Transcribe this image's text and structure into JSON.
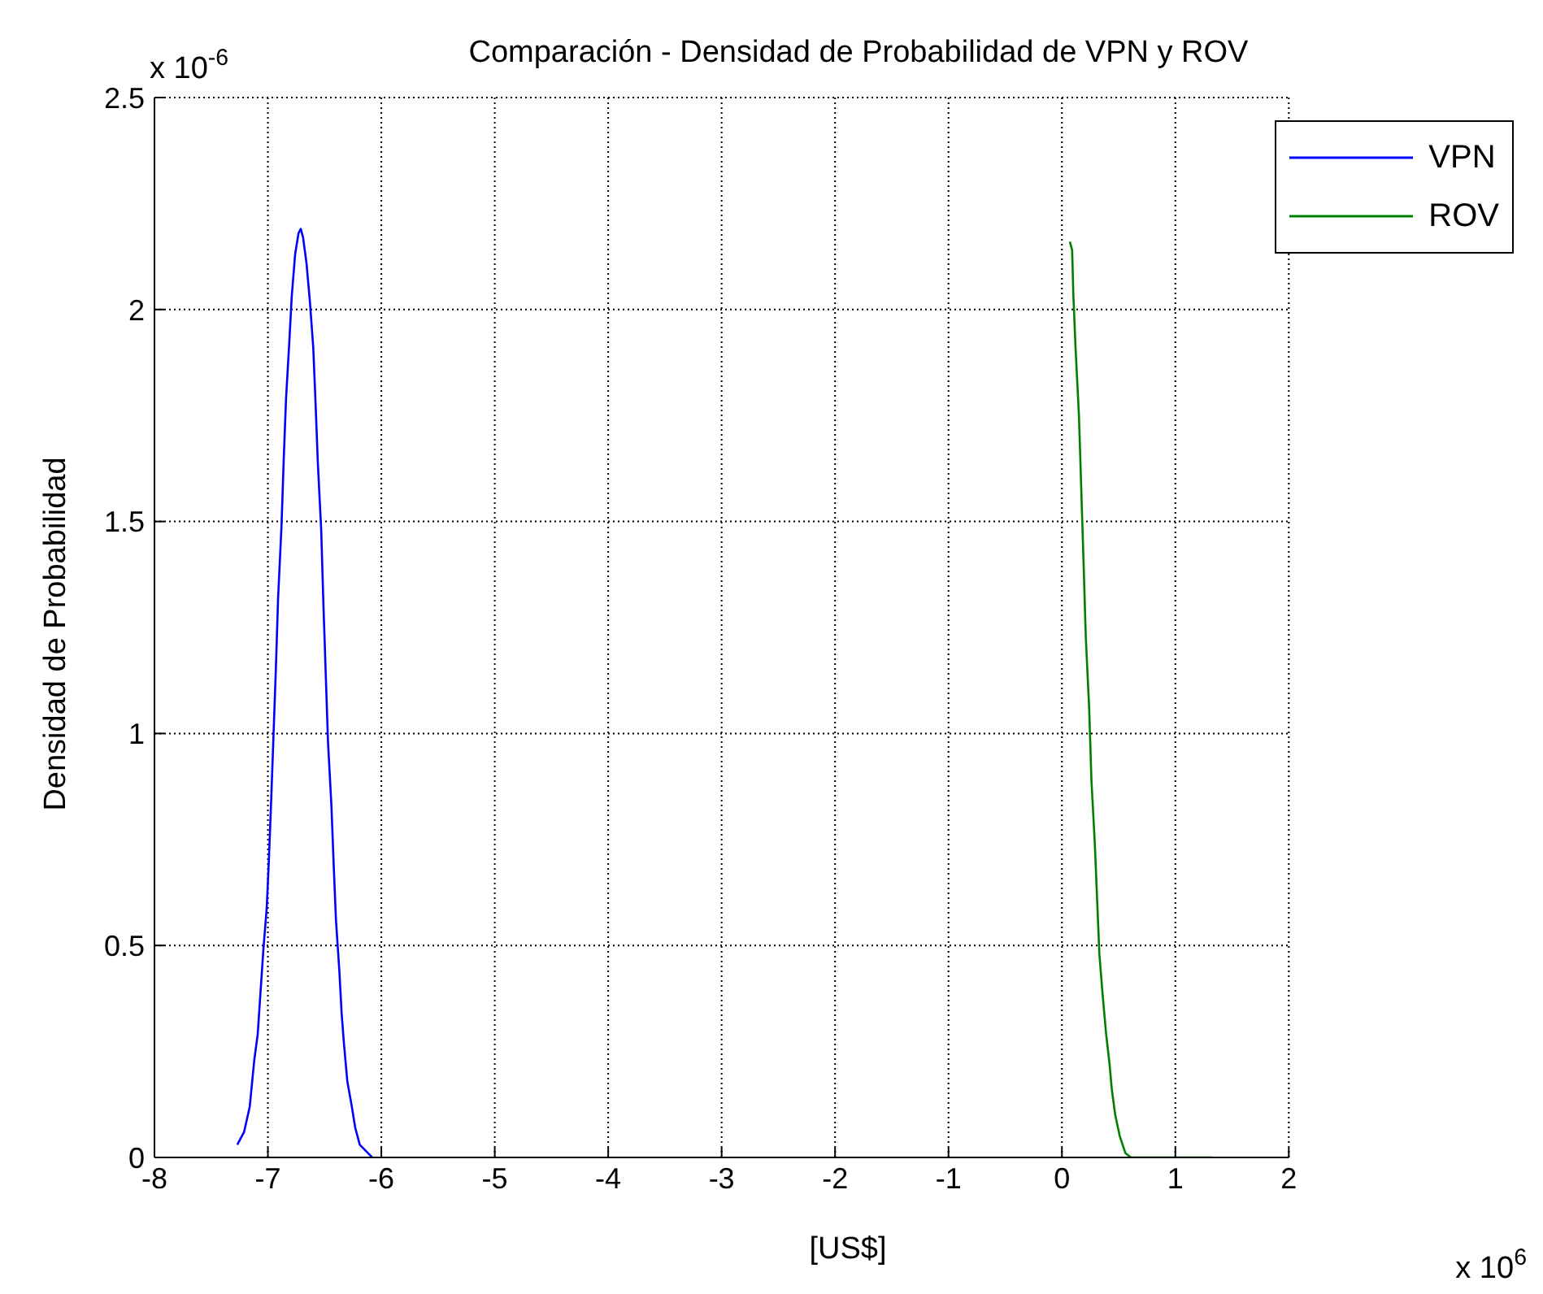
{
  "chart_data": {
    "type": "line",
    "title": "Comparación - Densidad de Probabilidad de VPN y ROV",
    "xlabel": "[US$]",
    "ylabel": "Densidad de Probabilidad",
    "annotations": [
      "x 10$^{-6}$",
      "x 10$^{6}$"
    ],
    "xlim": [
      -8,
      2
    ],
    "xticks": [
      -8,
      -7,
      -6,
      -5,
      -4,
      -3,
      -2,
      -1,
      0,
      1,
      2
    ],
    "ylim": [
      0,
      2.5
    ],
    "yticks": [
      0,
      0.5,
      1,
      1.5,
      2,
      2.5
    ],
    "grid": true,
    "legend": "top right",
    "marker": "none",
    "line_style": "solid",
    "series": [
      {
        "name": "VPN",
        "color": "#0000ff",
        "x": [
          -7.27,
          -7.21,
          -7.16,
          -7.12,
          -7.09,
          -7.07,
          -7.04,
          -7.01,
          -6.99,
          -6.97,
          -6.95,
          -6.93,
          -6.91,
          -6.88,
          -6.86,
          -6.84,
          -6.81,
          -6.79,
          -6.76,
          -6.73,
          -6.71,
          -6.69,
          -6.66,
          -6.63,
          -6.6,
          -6.58,
          -6.56,
          -6.53,
          -6.51,
          -6.49,
          -6.47,
          -6.44,
          -6.42,
          -6.4,
          -6.37,
          -6.35,
          -6.33,
          -6.3,
          -6.26,
          -6.23,
          -6.19,
          -6.08
        ],
        "values": [
          0.03,
          0.06,
          0.12,
          0.23,
          0.29,
          0.37,
          0.49,
          0.59,
          0.71,
          0.85,
          1.0,
          1.15,
          1.32,
          1.49,
          1.65,
          1.79,
          1.93,
          2.03,
          2.13,
          2.18,
          2.19,
          2.17,
          2.11,
          2.02,
          1.91,
          1.78,
          1.64,
          1.48,
          1.3,
          1.14,
          0.98,
          0.83,
          0.69,
          0.56,
          0.44,
          0.34,
          0.27,
          0.18,
          0.12,
          0.07,
          0.03,
          0
        ]
      },
      {
        "name": "ROV",
        "color": "#008000",
        "x": [
          0.07,
          0.09,
          0.1,
          0.12,
          0.15,
          0.17,
          0.19,
          0.21,
          0.24,
          0.26,
          0.29,
          0.31,
          0.33,
          0.36,
          0.39,
          0.42,
          0.44,
          0.47,
          0.51,
          0.56,
          0.61,
          1.33
        ],
        "values": [
          2.16,
          2.14,
          2.04,
          1.91,
          1.75,
          1.58,
          1.41,
          1.23,
          1.06,
          0.89,
          0.74,
          0.61,
          0.48,
          0.38,
          0.29,
          0.22,
          0.16,
          0.1,
          0.05,
          0.01,
          0,
          0
        ]
      }
    ]
  }
}
